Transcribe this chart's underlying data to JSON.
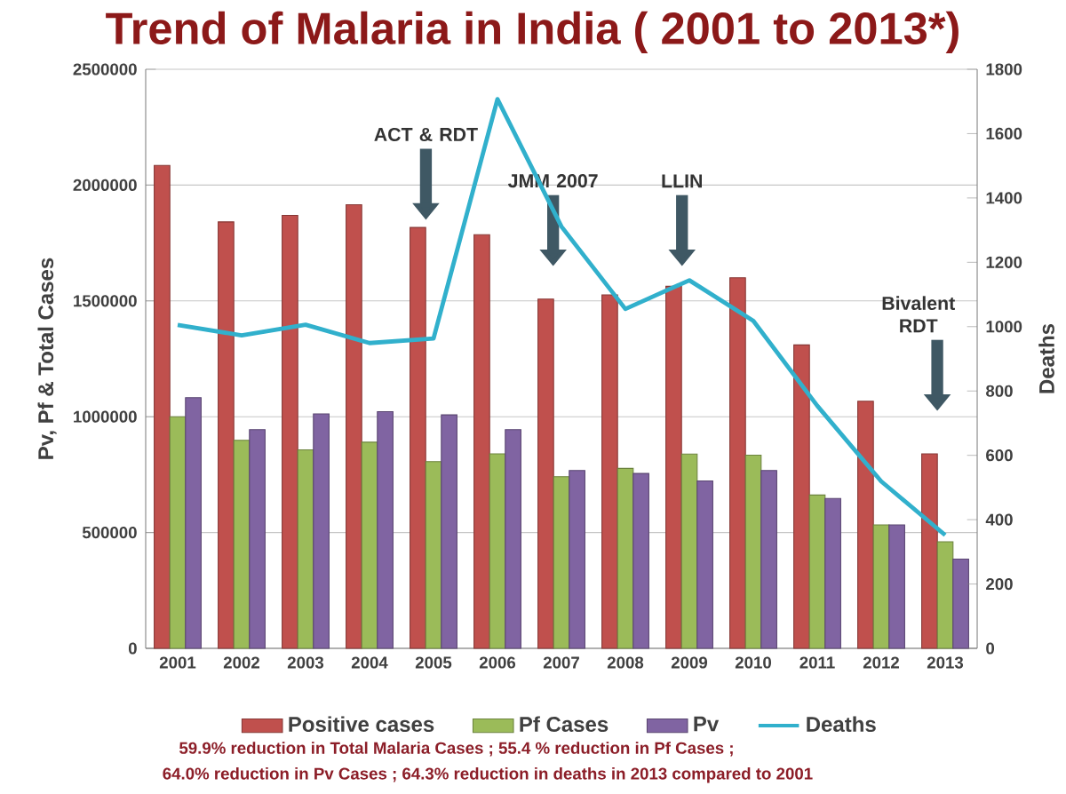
{
  "chart_data": {
    "type": "bar",
    "title": "Trend of Malaria in India ( 2001 to 2013*)",
    "ylabel": "Pv, Pf & Total Cases",
    "y2label": "Deaths",
    "categories": [
      "2001",
      "2002",
      "2003",
      "2004",
      "2005",
      "2006",
      "2007",
      "2008",
      "2009",
      "2010",
      "2011",
      "2012",
      "2013"
    ],
    "series": [
      {
        "name": "Positive cases",
        "color": "#c0504d",
        "values": [
          2085000,
          1841000,
          1869000,
          1915000,
          1817000,
          1786000,
          1508000,
          1526000,
          1563000,
          1600000,
          1310000,
          1067000,
          840000
        ]
      },
      {
        "name": "Pf Cases",
        "color": "#9bbb59",
        "values": [
          1000000,
          898000,
          857000,
          890000,
          806000,
          840000,
          741000,
          777000,
          839000,
          834000,
          662000,
          533000,
          460000
        ]
      },
      {
        "name": "Pv",
        "color": "#8064a2",
        "values": [
          1082000,
          944000,
          1012000,
          1022000,
          1008000,
          944000,
          768000,
          755000,
          723000,
          768000,
          647000,
          533000,
          385000
        ]
      },
      {
        "name": "Deaths",
        "type": "line",
        "axis": "y2",
        "color": "#31b0cc",
        "values": [
          1005,
          973,
          1006,
          949,
          963,
          1707,
          1311,
          1055,
          1144,
          1018,
          754,
          519,
          352
        ]
      }
    ],
    "ylim": [
      0,
      2500000
    ],
    "yticks": [
      0,
      500000,
      1000000,
      1500000,
      2000000,
      2500000
    ],
    "y2lim": [
      0,
      1800
    ],
    "y2ticks": [
      0,
      200,
      400,
      600,
      800,
      1000,
      1200,
      1400,
      1600,
      1800
    ],
    "grid": "y",
    "legend": "bottom",
    "annotations": [
      "ACT & RDT",
      "JMM 2007",
      "LLIN",
      "Bivalent RDT",
      "59.9% reduction in Total Malaria Cases ;      55.4 % reduction in Pf Cases ;",
      "64.0% reduction in Pv Cases ; 64.3% reduction in deaths in 2013 compared to 2001"
    ]
  }
}
